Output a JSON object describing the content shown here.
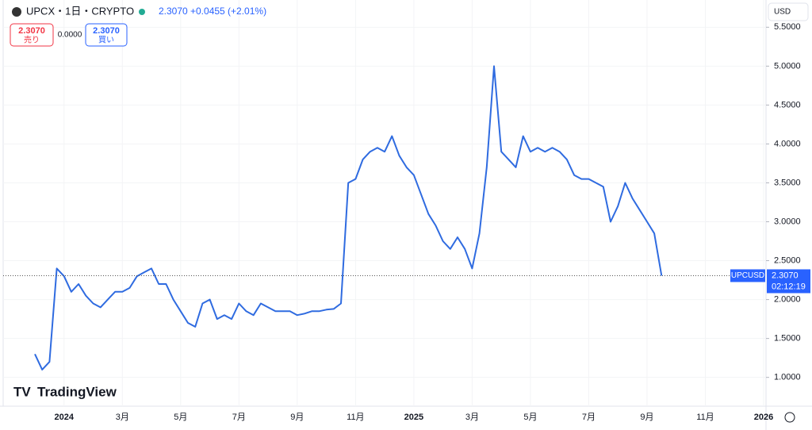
{
  "header": {
    "symbol": "UPCX・1日・CRYPTO",
    "price": "2.3070",
    "change": "+0.0455 (+2.01%)",
    "sell_price": "2.3070",
    "sell_label": "売り",
    "spread": "0.0000",
    "buy_price": "2.3070",
    "buy_label": "買い",
    "currency": "USD",
    "countdown": "02:12:19",
    "logo": "TradingView"
  },
  "chart_data": {
    "type": "line",
    "categories": [
      null,
      null,
      null,
      null,
      "2024",
      null,
      null,
      null,
      null,
      null,
      null,
      null,
      "3月",
      null,
      null,
      null,
      null,
      null,
      null,
      null,
      "5月",
      null,
      null,
      null,
      null,
      null,
      null,
      null,
      "7月",
      null,
      null,
      null,
      null,
      null,
      null,
      null,
      "9月",
      null,
      null,
      null,
      null,
      null,
      null,
      null,
      "11月",
      null,
      null,
      null,
      null,
      null,
      null,
      null,
      "2025",
      null,
      null,
      null,
      null,
      null,
      null,
      null,
      "3月",
      null,
      null,
      null,
      null,
      null,
      null,
      null,
      "5月",
      null,
      null,
      null,
      null,
      null,
      null,
      null,
      "7月",
      null,
      null,
      null,
      null,
      null,
      null,
      null,
      "9月",
      null,
      null,
      null,
      null,
      null,
      null,
      null,
      "11月",
      null,
      null,
      null,
      null,
      null,
      null,
      null,
      "2026"
    ],
    "series": [
      {
        "name": "UPCUSD",
        "color": "#2f6be0",
        "values": [
          1.3,
          1.1,
          1.2,
          2.4,
          2.3,
          2.1,
          2.2,
          2.05,
          1.95,
          1.9,
          2.0,
          2.1,
          2.1,
          2.15,
          2.3,
          2.35,
          2.4,
          2.2,
          2.2,
          2.0,
          1.85,
          1.7,
          1.65,
          1.95,
          2.0,
          1.75,
          1.8,
          1.75,
          1.95,
          1.85,
          1.8,
          1.95,
          1.9,
          1.85,
          1.85,
          1.85,
          1.8,
          1.82,
          1.85,
          1.85,
          1.87,
          1.88,
          1.95,
          3.5,
          3.55,
          3.8,
          3.9,
          3.95,
          3.9,
          4.1,
          3.85,
          3.7,
          3.6,
          3.35,
          3.1,
          2.95,
          2.75,
          2.65,
          2.8,
          2.65,
          2.4,
          2.85,
          3.7,
          5.0,
          3.9,
          3.8,
          3.7,
          4.1,
          3.9,
          3.95,
          3.9,
          3.95,
          3.9,
          3.8,
          3.6,
          3.55,
          3.55,
          3.5,
          3.45,
          3.0,
          3.2,
          3.5,
          3.3,
          3.15,
          3.0,
          2.85,
          2.307,
          null,
          null,
          null,
          null,
          null,
          null,
          null,
          null,
          null,
          null,
          null,
          null,
          null,
          null
        ]
      }
    ],
    "ylim": [
      0.65,
      5.85
    ],
    "yticks": [
      {
        "value": 1.0,
        "label": "1.0000"
      },
      {
        "value": 1.5,
        "label": "1.5000"
      },
      {
        "value": 2.0,
        "label": "2.0000"
      },
      {
        "value": 2.5,
        "label": "2.5000"
      },
      {
        "value": 3.0,
        "label": "3.0000"
      },
      {
        "value": 3.5,
        "label": "3.5000"
      },
      {
        "value": 4.0,
        "label": "4.0000"
      },
      {
        "value": 4.5,
        "label": "4.5000"
      },
      {
        "value": 5.0,
        "label": "5.0000"
      },
      {
        "value": 5.5,
        "label": "5.5000"
      }
    ],
    "last_price": {
      "value": 2.307,
      "label": "2.3070"
    },
    "grid": true
  }
}
